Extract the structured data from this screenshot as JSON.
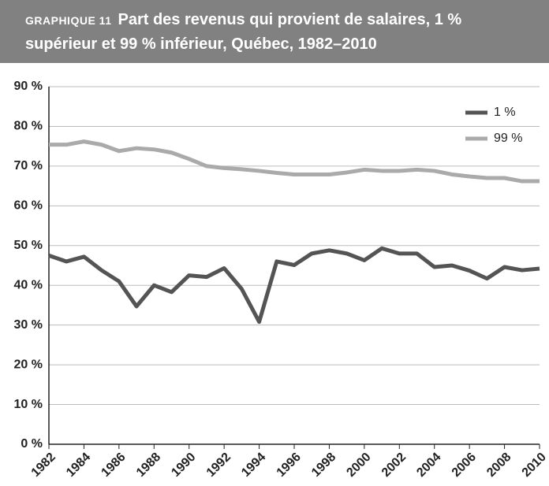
{
  "chart_data": {
    "type": "line",
    "label": "GRAPHIQUE 11",
    "title": "Part des revenus qui provient de salaires, 1 % supérieur et 99 % inférieur, Québec, 1982–2010",
    "x": [
      1982,
      1983,
      1984,
      1985,
      1986,
      1987,
      1988,
      1989,
      1990,
      1991,
      1992,
      1993,
      1994,
      1995,
      1996,
      1997,
      1998,
      1999,
      2000,
      2001,
      2002,
      2003,
      2004,
      2005,
      2006,
      2007,
      2008,
      2009,
      2010
    ],
    "xlim": [
      1982,
      2010
    ],
    "xticks": [
      1982,
      1984,
      1986,
      1988,
      1990,
      1992,
      1994,
      1996,
      1998,
      2000,
      2002,
      2004,
      2006,
      2008,
      2010
    ],
    "ylim": [
      0,
      90
    ],
    "yticks": [
      {
        "value": 0,
        "label": "0 %"
      },
      {
        "value": 10,
        "label": "10 %"
      },
      {
        "value": 20,
        "label": "20 %"
      },
      {
        "value": 30,
        "label": "30 %"
      },
      {
        "value": 40,
        "label": "40 %"
      },
      {
        "value": 50,
        "label": "50 %"
      },
      {
        "value": 60,
        "label": "60 %"
      },
      {
        "value": 70,
        "label": "70 %"
      },
      {
        "value": 80,
        "label": "80 %"
      },
      {
        "value": 90,
        "label": "90 %"
      }
    ],
    "grid": true,
    "legend": "top-right",
    "series": [
      {
        "name": "1 %",
        "color": "#545454",
        "values": [
          47.5,
          46,
          47.2,
          43.8,
          41,
          34.7,
          40,
          38.3,
          42.5,
          42.1,
          44.3,
          39.1,
          30.8,
          46,
          45.1,
          48,
          48.8,
          48,
          46.3,
          49.3,
          48,
          48,
          44.6,
          45,
          43.7,
          41.7,
          44.6,
          43.8,
          44.2
        ]
      },
      {
        "name": "99 %",
        "color": "#aaaaaa",
        "values": [
          75.4,
          75.4,
          76.2,
          75.4,
          73.8,
          74.5,
          74.2,
          73.4,
          71.8,
          70,
          69.5,
          69.2,
          68.8,
          68.3,
          67.9,
          67.9,
          67.9,
          68.4,
          69.1,
          68.8,
          68.8,
          69.1,
          68.8,
          67.9,
          67.4,
          67,
          67,
          66.2,
          66.2
        ]
      }
    ]
  }
}
